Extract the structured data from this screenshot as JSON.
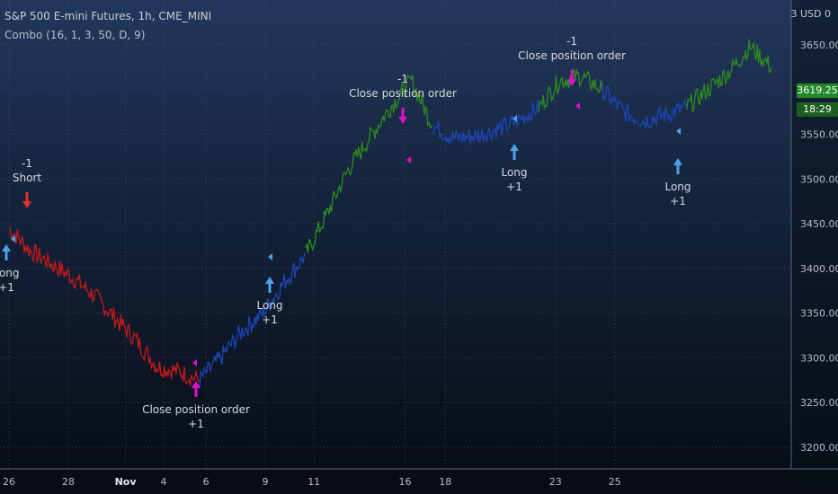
{
  "header": {
    "title": "S&P 500 E-mini Futures, 1h, CME_MINI",
    "study": "Combo (16, 1, 3, 50, D, 9)"
  },
  "axis": {
    "scale_mode": "3 USD 0",
    "current_price": "3619.25",
    "countdown": "18:29"
  },
  "colors": {
    "bg_top": "#22375c",
    "bg_bottom": "#070b13",
    "up": "#2e8b1e",
    "neutral": "#1e44b4",
    "down": "#c21a1a",
    "close_marker": "#e010c8",
    "long_marker": "#4aa3e8",
    "short_marker": "#e53030"
  },
  "chart_data": {
    "type": "line",
    "title": "S&P 500 E-mini Futures, 1h, CME_MINI",
    "y_ticks": [
      "3650.00",
      "3600.00",
      "3550.00",
      "3500.00",
      "3450.00",
      "3400.00",
      "3350.00",
      "3300.00",
      "3250.00",
      "3200.00"
    ],
    "ylim": [
      3200,
      3680
    ],
    "x_ticks": [
      "26",
      "28",
      "Nov",
      "4",
      "6",
      "9",
      "11",
      "16",
      "18",
      "23",
      "25"
    ],
    "x_range_days": [
      0,
      36
    ],
    "grid": true,
    "series": [
      {
        "color": "down",
        "points": [
          [
            0,
            3445
          ],
          [
            1,
            3420
          ],
          [
            2,
            3405
          ],
          [
            3,
            3390
          ],
          [
            4,
            3370
          ],
          [
            5,
            3345
          ],
          [
            6,
            3320
          ],
          [
            7,
            3290
          ],
          [
            8,
            3285
          ],
          [
            9,
            3275
          ]
        ]
      },
      {
        "color": "neutral",
        "points": [
          [
            9,
            3275
          ],
          [
            10,
            3300
          ],
          [
            11,
            3330
          ],
          [
            12,
            3350
          ],
          [
            13,
            3385
          ],
          [
            14,
            3415
          ]
        ]
      },
      {
        "color": "up",
        "points": [
          [
            14,
            3415
          ],
          [
            15,
            3460
          ],
          [
            16,
            3510
          ],
          [
            17,
            3545
          ],
          [
            18,
            3580
          ],
          [
            19,
            3610
          ],
          [
            20,
            3560
          ]
        ]
      },
      {
        "color": "neutral",
        "points": [
          [
            20,
            3560
          ],
          [
            21,
            3545
          ],
          [
            22,
            3548
          ],
          [
            23,
            3555
          ],
          [
            24,
            3565
          ],
          [
            25,
            3580
          ]
        ]
      },
      {
        "color": "up",
        "points": [
          [
            25,
            3580
          ],
          [
            26,
            3610
          ],
          [
            27,
            3615
          ],
          [
            28,
            3600
          ]
        ]
      },
      {
        "color": "neutral",
        "points": [
          [
            28,
            3600
          ],
          [
            29,
            3575
          ],
          [
            30,
            3565
          ],
          [
            31,
            3572
          ],
          [
            32,
            3580
          ]
        ]
      },
      {
        "color": "up",
        "points": [
          [
            32,
            3580
          ],
          [
            33,
            3600
          ],
          [
            34,
            3620
          ],
          [
            35,
            3648
          ],
          [
            36,
            3625
          ]
        ]
      }
    ],
    "annotations": [
      {
        "text": "Long",
        "sub": "+1",
        "type": "long"
      },
      {
        "text": "Short",
        "sub": "-1",
        "type": "short"
      },
      {
        "text": "Close position order",
        "sub": "+1",
        "type": "close"
      },
      {
        "text": "Long",
        "sub": "+1",
        "type": "long"
      },
      {
        "text": "Close position order",
        "sub": "-1",
        "type": "close"
      },
      {
        "text": "Long",
        "sub": "+1",
        "type": "long"
      },
      {
        "text": "Close position order",
        "sub": "-1",
        "type": "close"
      },
      {
        "text": "Long",
        "sub": "+1",
        "type": "long"
      }
    ]
  }
}
